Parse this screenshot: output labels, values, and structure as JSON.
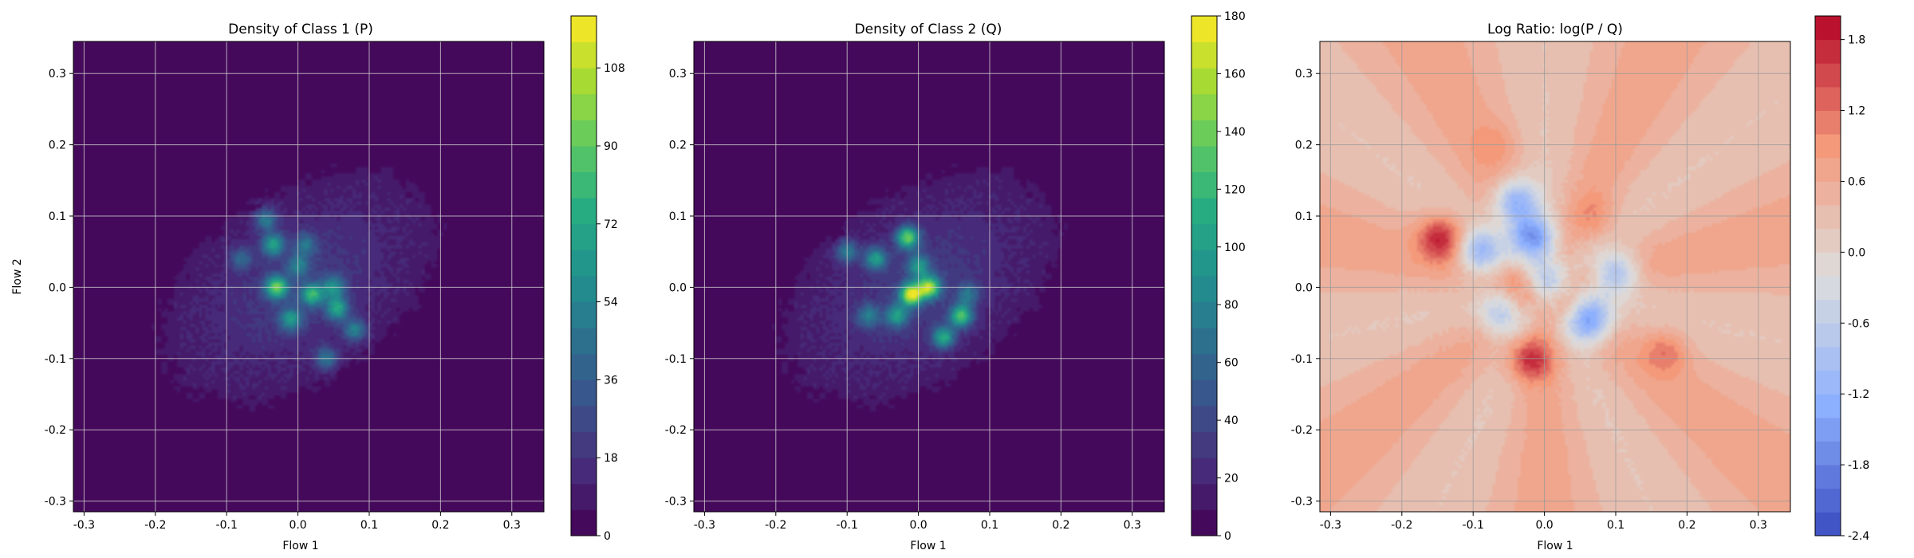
{
  "chart_data": [
    {
      "type": "heatmap",
      "title": "Density of Class 1 (P)",
      "xlabel": "Flow 1",
      "ylabel": "Flow 2",
      "xlim": [
        -0.315,
        0.345
      ],
      "ylim": [
        -0.315,
        0.345
      ],
      "xticks": [
        -0.3,
        -0.2,
        -0.1,
        0.0,
        0.1,
        0.2,
        0.3
      ],
      "yticks": [
        -0.3,
        -0.2,
        -0.1,
        0.0,
        0.1,
        0.2,
        0.3
      ],
      "grid": true,
      "colormap": "viridis",
      "colorbar": {
        "min": 0,
        "max": 120,
        "ticks": [
          0,
          18,
          36,
          54,
          72,
          90,
          108
        ],
        "levels": 20
      },
      "hotspots": [
        {
          "x": -0.03,
          "y": 0.0,
          "value": 78
        },
        {
          "x": -0.035,
          "y": 0.06,
          "value": 55
        },
        {
          "x": -0.045,
          "y": 0.095,
          "value": 40
        },
        {
          "x": 0.02,
          "y": -0.01,
          "value": 62
        },
        {
          "x": 0.055,
          "y": -0.03,
          "value": 58
        },
        {
          "x": -0.01,
          "y": -0.045,
          "value": 50
        },
        {
          "x": 0.05,
          "y": 0.0,
          "value": 45
        },
        {
          "x": 0.08,
          "y": -0.06,
          "value": 42
        },
        {
          "x": 0.04,
          "y": -0.1,
          "value": 38
        },
        {
          "x": -0.08,
          "y": 0.04,
          "value": 30
        },
        {
          "x": 0.01,
          "y": 0.06,
          "value": 32
        },
        {
          "x": 0.0,
          "y": 0.03,
          "value": 35
        }
      ]
    },
    {
      "type": "heatmap",
      "title": "Density of Class 2 (Q)",
      "xlabel": "Flow 1",
      "ylabel": "",
      "xlim": [
        -0.315,
        0.345
      ],
      "ylim": [
        -0.315,
        0.345
      ],
      "xticks": [
        -0.3,
        -0.2,
        -0.1,
        0.0,
        0.1,
        0.2,
        0.3
      ],
      "yticks": [
        -0.3,
        -0.2,
        -0.1,
        0.0,
        0.1,
        0.2,
        0.3
      ],
      "grid": true,
      "colormap": "viridis",
      "colorbar": {
        "min": 0,
        "max": 180,
        "ticks": [
          0,
          20,
          40,
          60,
          80,
          100,
          120,
          140,
          160,
          180
        ],
        "levels": 20
      },
      "hotspots": [
        {
          "x": -0.015,
          "y": 0.07,
          "value": 120
        },
        {
          "x": -0.01,
          "y": -0.01,
          "value": 150
        },
        {
          "x": 0.015,
          "y": 0.0,
          "value": 130
        },
        {
          "x": 0.06,
          "y": -0.04,
          "value": 110
        },
        {
          "x": 0.035,
          "y": -0.07,
          "value": 90
        },
        {
          "x": -0.06,
          "y": 0.04,
          "value": 80
        },
        {
          "x": -0.1,
          "y": 0.05,
          "value": 60
        },
        {
          "x": -0.03,
          "y": -0.04,
          "value": 75
        },
        {
          "x": 0.0,
          "y": 0.03,
          "value": 70
        },
        {
          "x": -0.07,
          "y": -0.04,
          "value": 55
        },
        {
          "x": 0.07,
          "y": -0.01,
          "value": 50
        }
      ]
    },
    {
      "type": "heatmap",
      "title": "Log Ratio: log(P / Q)",
      "xlabel": "Flow 1",
      "ylabel": "",
      "xlim": [
        -0.315,
        0.345
      ],
      "ylim": [
        -0.315,
        0.345
      ],
      "xticks": [
        -0.3,
        -0.2,
        -0.1,
        0.0,
        0.1,
        0.2,
        0.3
      ],
      "yticks": [
        -0.3,
        -0.2,
        -0.1,
        0.0,
        0.1,
        0.2,
        0.3
      ],
      "grid": true,
      "colormap": "coolwarm",
      "colorbar": {
        "min": -2.4,
        "max": 2.0,
        "ticks": [
          -2.4,
          -1.8,
          -1.2,
          -0.6,
          0.0,
          0.6,
          1.2,
          1.8
        ],
        "levels": 22
      },
      "background_value": 0.45,
      "hotspots": [
        {
          "x": -0.145,
          "y": 0.07,
          "value": 1.8
        },
        {
          "x": -0.02,
          "y": -0.1,
          "value": 1.7
        },
        {
          "x": 0.17,
          "y": -0.09,
          "value": 1.1
        },
        {
          "x": -0.03,
          "y": 0.0,
          "value": 1.2
        },
        {
          "x": 0.07,
          "y": 0.1,
          "value": 0.9
        },
        {
          "x": -0.07,
          "y": 0.2,
          "value": 0.8
        },
        {
          "x": 0.04,
          "y": -0.03,
          "value": 1.0
        },
        {
          "x": -0.02,
          "y": 0.07,
          "value": -1.6
        },
        {
          "x": 0.06,
          "y": -0.045,
          "value": -1.8
        },
        {
          "x": -0.04,
          "y": 0.12,
          "value": -1.2
        },
        {
          "x": -0.09,
          "y": 0.05,
          "value": -1.0
        },
        {
          "x": 0.1,
          "y": 0.02,
          "value": -0.9
        },
        {
          "x": 0.0,
          "y": 0.01,
          "value": -0.8
        },
        {
          "x": -0.06,
          "y": -0.04,
          "value": -0.7
        }
      ]
    }
  ]
}
